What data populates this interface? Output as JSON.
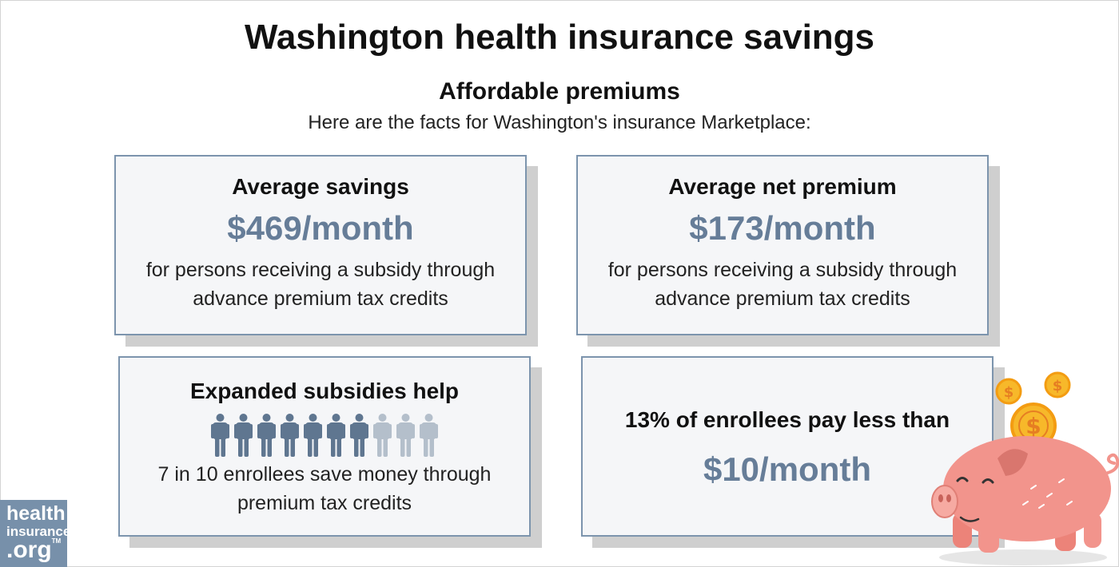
{
  "header": {
    "title": "Washington health insurance savings",
    "subtitle": "Affordable premiums",
    "intro": "Here are the facts for Washington's insurance Marketplace:"
  },
  "cards": {
    "savings": {
      "heading": "Average savings",
      "amount": "$469/month",
      "desc_line1": "for persons receiving a subsidy through",
      "desc_line2": "advance premium tax credits"
    },
    "net_premium": {
      "heading": "Average net premium",
      "amount": "$173/month",
      "desc_line1": "for persons receiving a subsidy through",
      "desc_line2": "advance premium tax credits"
    },
    "expanded": {
      "heading": "Expanded subsidies help",
      "people_total": 10,
      "people_highlighted": 7,
      "desc_line1": "7 in 10 enrollees save money through",
      "desc_line2": "premium tax credits"
    },
    "low_cost": {
      "heading": "13% of enrollees pay less than",
      "amount": "$10/month"
    }
  },
  "logo": {
    "line1": "health",
    "line2": "insurance",
    "line3": ".org",
    "tm": "TM"
  },
  "icons": {
    "person": "person-icon",
    "pig": "piggy-bank-icon",
    "coin": "dollar-coin-icon"
  },
  "colors": {
    "accent": "#667d98",
    "person_active": "#5f7690",
    "person_inactive": "#b4bfcb",
    "card_border": "#7c94ad",
    "pig": "#f2948c",
    "coin": "#f7b82a"
  }
}
